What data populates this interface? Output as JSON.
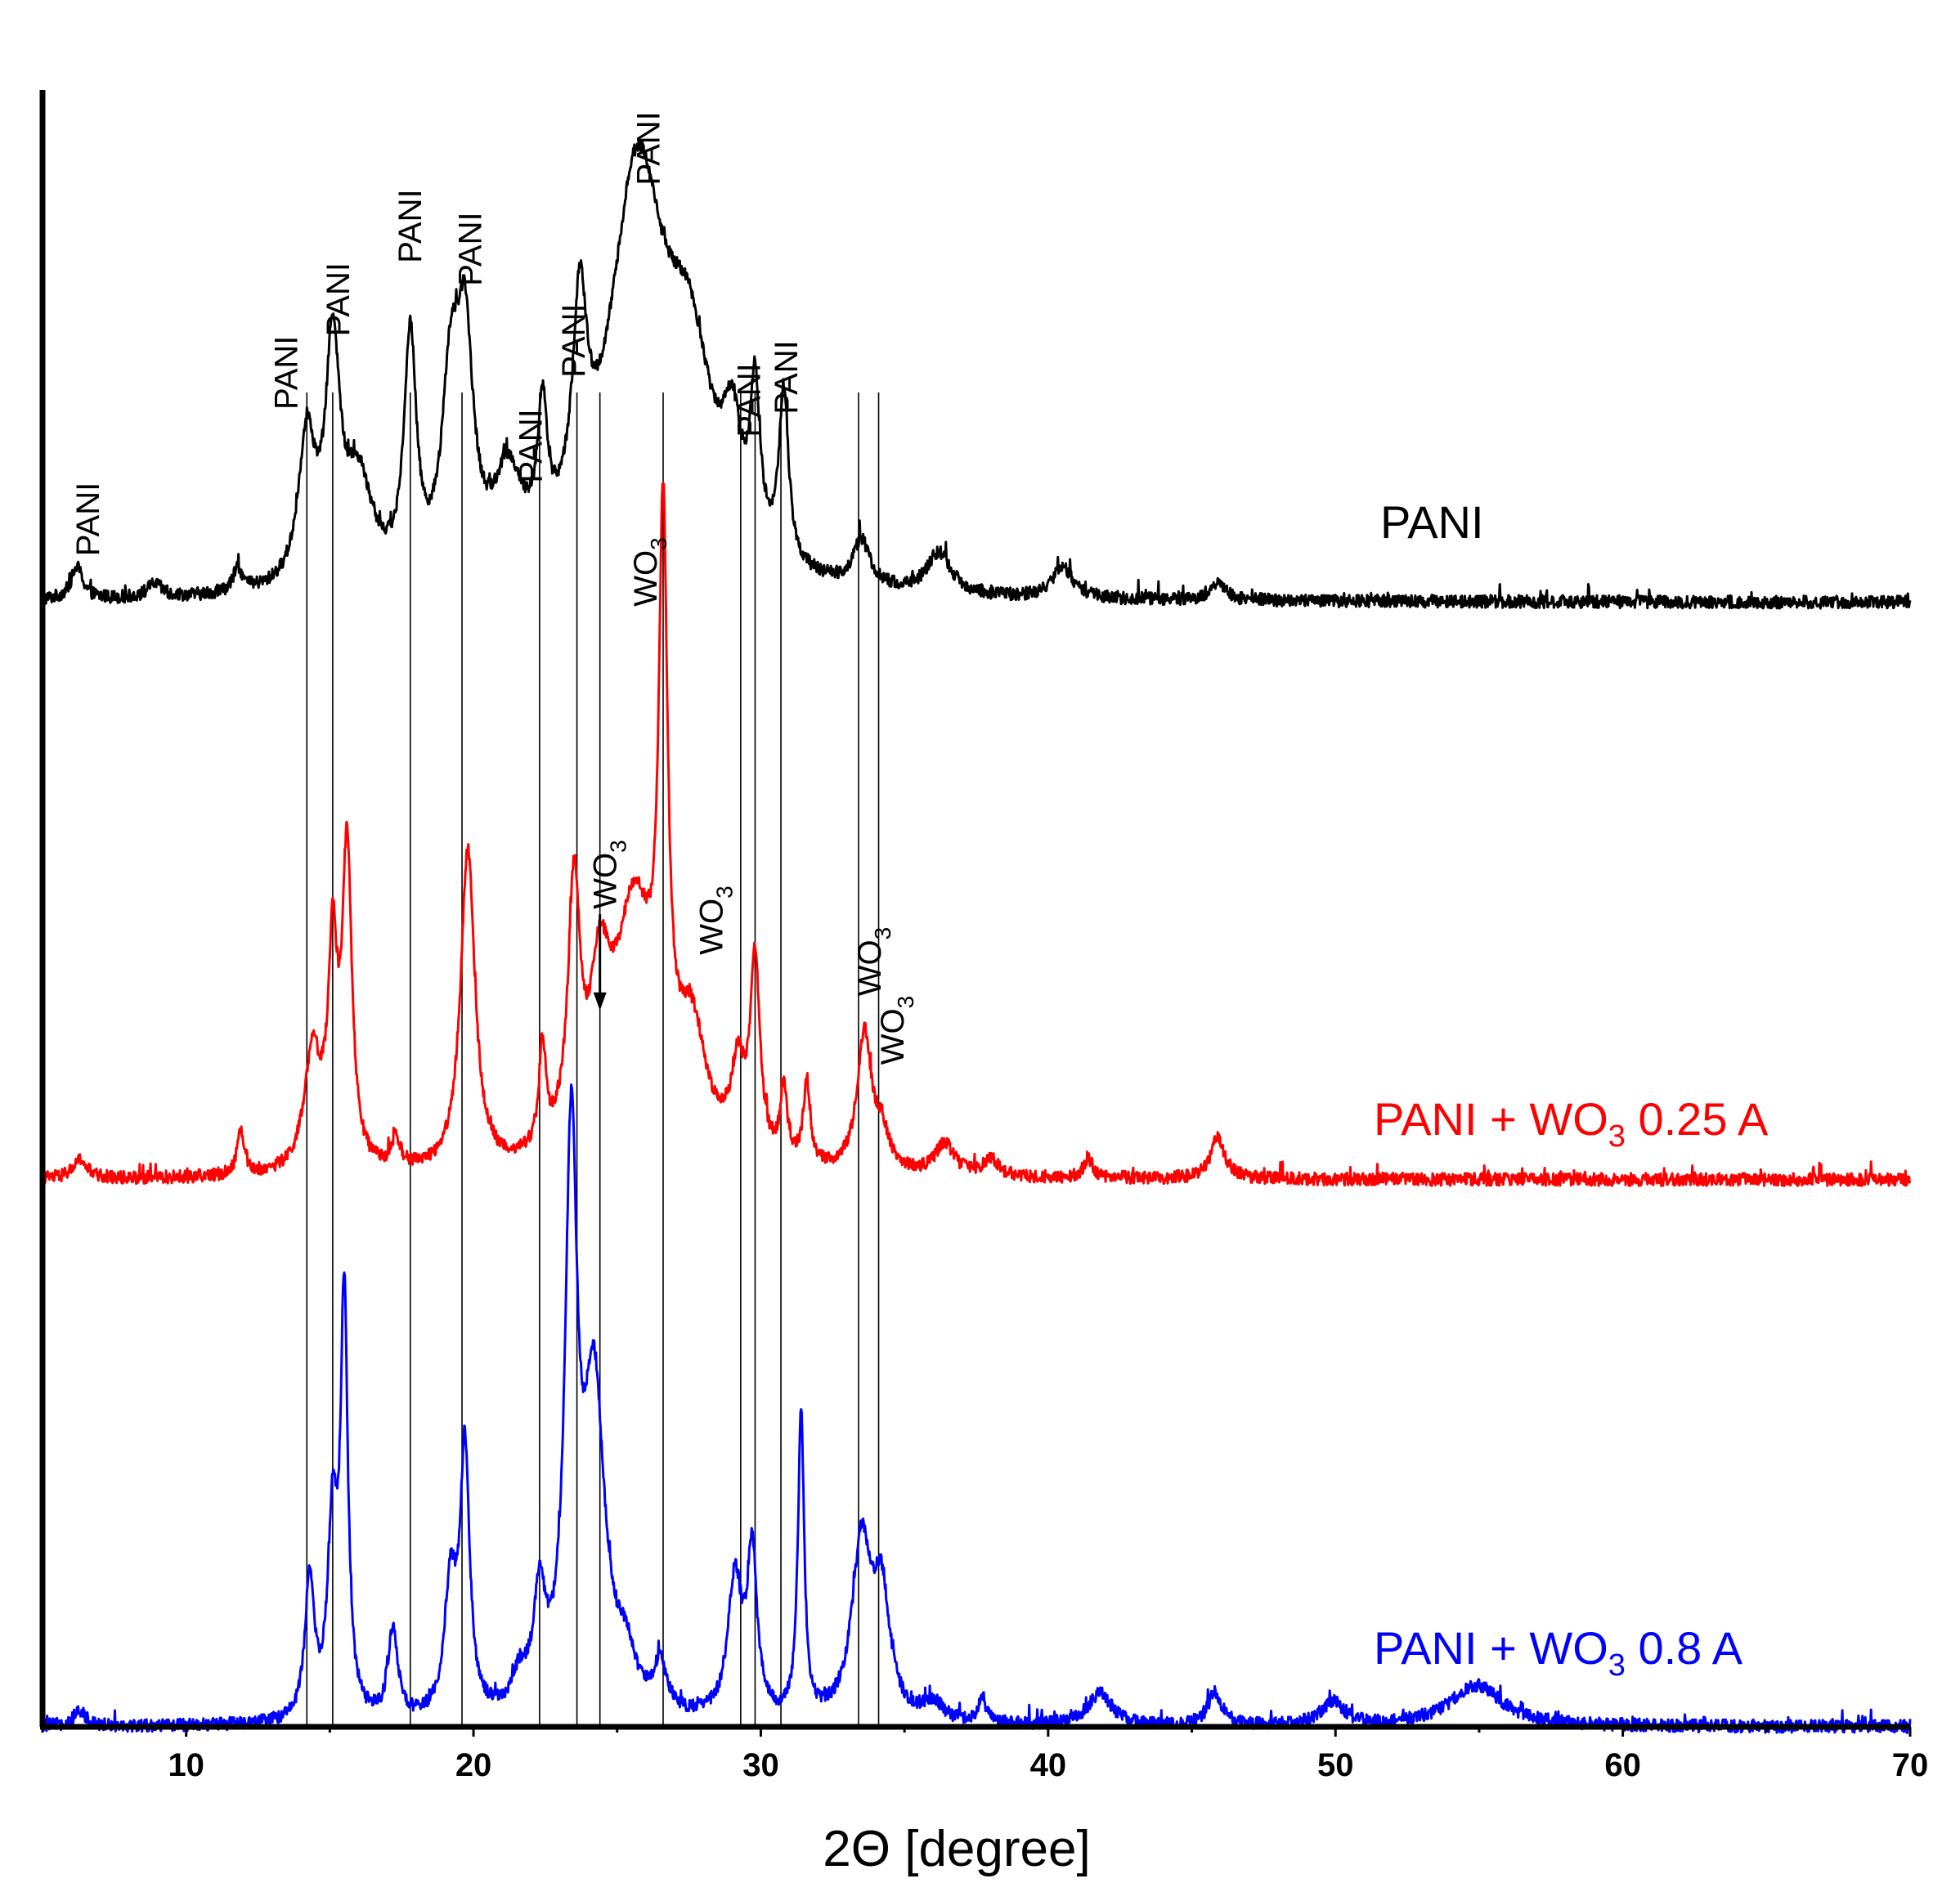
{
  "chart_data": {
    "type": "line",
    "xlabel": "2Θ [degree]",
    "ylabel": "",
    "xlim": [
      5,
      70
    ],
    "x_ticks": [
      10,
      20,
      30,
      40,
      50,
      60,
      70
    ],
    "y_ticks_shown": false,
    "grid": false,
    "series": [
      {
        "name": "PANI",
        "label_main": "PANI",
        "label_sub": "",
        "label_suffix": "",
        "color": "#000000",
        "baseline": 0.0,
        "peaks": [
          {
            "x": 6.2,
            "h": 0.07,
            "w": 0.25
          },
          {
            "x": 8.9,
            "h": 0.03,
            "w": 0.3
          },
          {
            "x": 11.8,
            "h": 0.05,
            "w": 0.2
          },
          {
            "x": 14.2,
            "h": 0.32,
            "w": 0.35
          },
          {
            "x": 15.1,
            "h": 0.5,
            "w": 0.3
          },
          {
            "x": 16.0,
            "h": 0.22,
            "w": 0.6
          },
          {
            "x": 17.8,
            "h": 0.52,
            "w": 0.25
          },
          {
            "x": 19.2,
            "h": 0.38,
            "w": 0.35
          },
          {
            "x": 19.7,
            "h": 0.48,
            "w": 0.35
          },
          {
            "x": 21.2,
            "h": 0.2,
            "w": 0.6
          },
          {
            "x": 22.4,
            "h": 0.28,
            "w": 0.2
          },
          {
            "x": 23.7,
            "h": 0.45,
            "w": 0.3
          },
          {
            "x": 25.7,
            "h": 0.88,
            "w": 1.2
          },
          {
            "x": 27.5,
            "h": 0.4,
            "w": 1.0
          },
          {
            "x": 29.0,
            "h": 0.22,
            "w": 0.4
          },
          {
            "x": 29.8,
            "h": 0.33,
            "w": 0.2
          },
          {
            "x": 30.8,
            "h": 0.37,
            "w": 0.2
          },
          {
            "x": 33.5,
            "h": 0.1,
            "w": 0.35
          },
          {
            "x": 36.2,
            "h": 0.09,
            "w": 0.5
          },
          {
            "x": 40.5,
            "h": 0.07,
            "w": 0.4
          },
          {
            "x": 45.9,
            "h": 0.04,
            "w": 0.3
          }
        ]
      },
      {
        "name": "PANI + WO3 0.25 A",
        "label_main": "PANI + WO",
        "label_sub": "3",
        "label_suffix": " 0.25 A",
        "color": "#ff0000",
        "baseline": 0.0,
        "peaks": [
          {
            "x": 6.3,
            "h": 0.04,
            "w": 0.3
          },
          {
            "x": 11.9,
            "h": 0.1,
            "w": 0.15
          },
          {
            "x": 14.4,
            "h": 0.25,
            "w": 0.35
          },
          {
            "x": 15.1,
            "h": 0.45,
            "w": 0.2
          },
          {
            "x": 15.6,
            "h": 0.68,
            "w": 0.2
          },
          {
            "x": 17.3,
            "h": 0.06,
            "w": 0.2
          },
          {
            "x": 19.8,
            "h": 0.7,
            "w": 0.3
          },
          {
            "x": 22.4,
            "h": 0.22,
            "w": 0.15
          },
          {
            "x": 23.5,
            "h": 0.55,
            "w": 0.25
          },
          {
            "x": 24.4,
            "h": 0.3,
            "w": 0.4
          },
          {
            "x": 25.6,
            "h": 0.55,
            "w": 0.9
          },
          {
            "x": 26.6,
            "h": 1.2,
            "w": 0.18
          },
          {
            "x": 27.6,
            "h": 0.25,
            "w": 0.6
          },
          {
            "x": 29.2,
            "h": 0.18,
            "w": 0.3
          },
          {
            "x": 29.8,
            "h": 0.42,
            "w": 0.2
          },
          {
            "x": 30.8,
            "h": 0.15,
            "w": 0.15
          },
          {
            "x": 31.6,
            "h": 0.18,
            "w": 0.15
          },
          {
            "x": 33.6,
            "h": 0.3,
            "w": 0.3
          },
          {
            "x": 34.2,
            "h": 0.08,
            "w": 0.3
          },
          {
            "x": 36.4,
            "h": 0.07,
            "w": 0.4
          },
          {
            "x": 38.0,
            "h": 0.04,
            "w": 0.3
          },
          {
            "x": 41.4,
            "h": 0.04,
            "w": 0.2
          },
          {
            "x": 45.9,
            "h": 0.09,
            "w": 0.3
          }
        ]
      },
      {
        "name": "PANI + WO3 0.8 A",
        "label_main": "PANI + WO",
        "label_sub": "3",
        "label_suffix": " 0.8 A",
        "color": "#0000ff",
        "baseline": 0.0,
        "peaks": [
          {
            "x": 6.3,
            "h": 0.03,
            "w": 0.3
          },
          {
            "x": 14.3,
            "h": 0.3,
            "w": 0.2
          },
          {
            "x": 15.1,
            "h": 0.42,
            "w": 0.2
          },
          {
            "x": 15.5,
            "h": 0.9,
            "w": 0.15
          },
          {
            "x": 17.2,
            "h": 0.2,
            "w": 0.2
          },
          {
            "x": 19.2,
            "h": 0.28,
            "w": 0.25
          },
          {
            "x": 19.7,
            "h": 0.57,
            "w": 0.2
          },
          {
            "x": 21.6,
            "h": 0.07,
            "w": 0.3
          },
          {
            "x": 22.3,
            "h": 0.24,
            "w": 0.25
          },
          {
            "x": 23.4,
            "h": 1.2,
            "w": 0.25
          },
          {
            "x": 24.2,
            "h": 0.7,
            "w": 0.45
          },
          {
            "x": 25.3,
            "h": 0.1,
            "w": 0.4
          },
          {
            "x": 26.5,
            "h": 0.1,
            "w": 0.3
          },
          {
            "x": 29.1,
            "h": 0.3,
            "w": 0.3
          },
          {
            "x": 29.7,
            "h": 0.35,
            "w": 0.2
          },
          {
            "x": 31.4,
            "h": 0.66,
            "w": 0.13
          },
          {
            "x": 33.5,
            "h": 0.38,
            "w": 0.4
          },
          {
            "x": 34.2,
            "h": 0.26,
            "w": 0.35
          },
          {
            "x": 36.0,
            "h": 0.04,
            "w": 0.4
          },
          {
            "x": 37.7,
            "h": 0.06,
            "w": 0.15
          },
          {
            "x": 41.8,
            "h": 0.07,
            "w": 0.5
          },
          {
            "x": 45.8,
            "h": 0.07,
            "w": 0.3
          },
          {
            "x": 49.9,
            "h": 0.05,
            "w": 0.5
          },
          {
            "x": 54.9,
            "h": 0.09,
            "w": 1.1
          }
        ]
      }
    ],
    "guide_lines_x": [
      14.2,
      15.1,
      17.8,
      19.6,
      22.3,
      23.6,
      24.4,
      26.6,
      29.3,
      29.8,
      30.7,
      33.4,
      34.1
    ],
    "annotations": [
      {
        "text": "PANI",
        "sub": "",
        "x": 6.6,
        "y_level": 0.08,
        "series": 0
      },
      {
        "text": "PANI",
        "sub": "",
        "x": 13.5,
        "y_level": 0.4,
        "series": 0
      },
      {
        "text": "PANI",
        "sub": "",
        "x": 15.3,
        "y_level": 0.56,
        "series": 0
      },
      {
        "text": "PANI",
        "sub": "",
        "x": 17.8,
        "y_level": 0.72,
        "series": 0
      },
      {
        "text": "PANI",
        "sub": "",
        "x": 19.9,
        "y_level": 0.67,
        "series": 0
      },
      {
        "text": "PANI",
        "sub": "",
        "x": 22.0,
        "y_level": 0.24,
        "series": 0
      },
      {
        "text": "PANI",
        "sub": "",
        "x": 23.5,
        "y_level": 0.47,
        "series": 0
      },
      {
        "text": "PANI",
        "sub": "",
        "x": 26.1,
        "y_level": 0.89,
        "series": 0
      },
      {
        "text": "PANI",
        "sub": "",
        "x": 29.6,
        "y_level": 0.34,
        "series": 0
      },
      {
        "text": "PANI",
        "sub": "",
        "x": 30.9,
        "y_level": 0.39,
        "series": 0
      },
      {
        "text": "WO",
        "sub": "3",
        "x": 26.0,
        "y_level": -0.03,
        "series": 0
      },
      {
        "text": "WO",
        "sub": "3",
        "x": 24.6,
        "y_level": 0.57,
        "series": 1
      },
      {
        "text": "WO",
        "sub": "3",
        "x": 28.3,
        "y_level": 0.47,
        "series": 1
      },
      {
        "text": "WO",
        "sub": "3",
        "x": 33.8,
        "y_level": 0.38,
        "series": 1
      },
      {
        "text": "WO",
        "sub": "3",
        "x": 34.6,
        "y_level": 0.23,
        "series": 1
      }
    ],
    "arrow": {
      "x": 24.4,
      "from_level": 0.58,
      "to_level": 0.37,
      "series": 1
    }
  }
}
